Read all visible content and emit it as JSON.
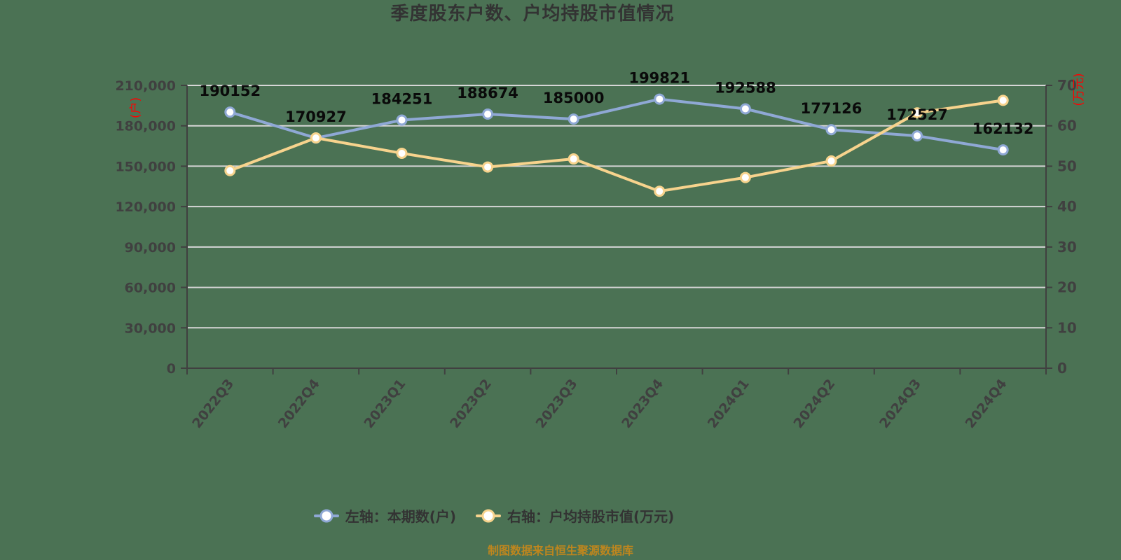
{
  "title": "季度股东户数、户均持股市值情况",
  "footer_note": "制图数据来自恒生聚源数据库",
  "colors": {
    "background": "#4B7254",
    "title": "#333333",
    "axis_line": "#404040",
    "grid_line": "#D6D6D6",
    "tick_label": "#404040",
    "data_label": "#0A0A0A",
    "axis_unit_label": "#FF0000",
    "series_left": "#8FA8D5",
    "series_right": "#F7D38D",
    "marker_fill": "#FFFFFF",
    "legend_text": "#333333",
    "footer": "#BE861E"
  },
  "legend": {
    "items": [
      {
        "label": "左轴：本期数(户)",
        "color": "#8FA8D5"
      },
      {
        "label": "右轴：户均持股市值(万元)",
        "color": "#F7D38D"
      }
    ]
  },
  "chart_data": {
    "type": "line",
    "title": "季度股东户数、户均持股市值情况",
    "categories": [
      "2022Q3",
      "2022Q4",
      "2023Q1",
      "2023Q2",
      "2023Q3",
      "2023Q4",
      "2024Q1",
      "2024Q2",
      "2024Q3",
      "2024Q4"
    ],
    "series": [
      {
        "name": "左轴：本期数(户)",
        "yaxis": "left",
        "color": "#8FA8D5",
        "values": [
          190152,
          170927,
          184251,
          188674,
          185000,
          199821,
          192588,
          177126,
          172527,
          162132
        ],
        "data_labels": true
      },
      {
        "name": "右轴：户均持股市值(万元)",
        "yaxis": "right",
        "color": "#F7D38D",
        "values": [
          48.9,
          57.0,
          53.2,
          49.8,
          51.8,
          43.8,
          47.2,
          51.3,
          63.2,
          66.3
        ],
        "data_labels": false
      }
    ],
    "left_axis": {
      "name": "(户)",
      "min": 0,
      "max": 210000,
      "step": 30000,
      "tick_labels": [
        "0",
        "30,000",
        "60,000",
        "90,000",
        "120,000",
        "150,000",
        "180,000",
        "210,000"
      ]
    },
    "right_axis": {
      "name": "(万元)",
      "min": 0,
      "max": 70,
      "step": 10,
      "tick_labels": [
        "0",
        "10",
        "20",
        "30",
        "40",
        "50",
        "60",
        "70"
      ]
    },
    "grid": true,
    "legend_position": "bottom"
  }
}
